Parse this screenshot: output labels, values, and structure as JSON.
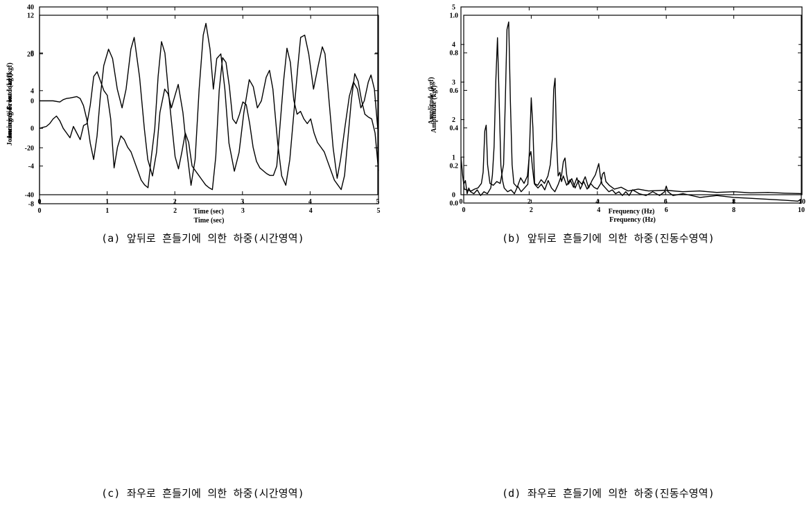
{
  "figures": [
    {
      "id": "a",
      "caption": "(a) 앞뒤로 흔들기에 의한 하중(시간영역)",
      "chart_data": {
        "type": "line",
        "xlabel": "Time (sec)",
        "ylabel": "Jouncing-Front load (kgf)",
        "xlim": [
          0,
          5
        ],
        "ylim": [
          -40,
          40
        ],
        "xticks": [
          "0",
          "1",
          "2",
          "3",
          "4",
          "5"
        ],
        "yticks": [
          "-40",
          "-20",
          "0",
          "20",
          "40"
        ],
        "grid": false,
        "series": [
          {
            "x": [
              0,
              0.1,
              0.2,
              0.3,
              0.35,
              0.4,
              0.45,
              0.5,
              0.55,
              0.6,
              0.65,
              0.7,
              0.75,
              0.8,
              0.85,
              0.9,
              0.95,
              1.02,
              1.08,
              1.15,
              1.22,
              1.28,
              1.35,
              1.4,
              1.48,
              1.55,
              1.6,
              1.67,
              1.73,
              1.78,
              1.85,
              1.9,
              1.95,
              2.0,
              2.05,
              2.12,
              2.18,
              2.24,
              2.3,
              2.36,
              2.42,
              2.46,
              2.52,
              2.57,
              2.62,
              2.68,
              2.74,
              2.8,
              2.88,
              2.95,
              3.02,
              3.1,
              3.16,
              3.22,
              3.28,
              3.35,
              3.4,
              3.45,
              3.52,
              3.58,
              3.64,
              3.7,
              3.76,
              3.82,
              3.86,
              3.92,
              3.98,
              4.05,
              4.12,
              4.18,
              4.22,
              4.28,
              4.34,
              4.4,
              4.45,
              4.52,
              4.58,
              4.64,
              4.7,
              4.75,
              4.8,
              4.86,
              4.9,
              4.95,
              5.0
            ],
            "y": [
              0,
              0,
              0,
              -0.5,
              0.5,
              1,
              1.2,
              1.5,
              1.8,
              1,
              -2,
              -8,
              -18,
              -25,
              -15,
              2,
              15,
              22,
              18,
              5,
              -3,
              5,
              22,
              27,
              10,
              -12,
              -25,
              -32,
              -22,
              -5,
              5,
              3,
              -3,
              2,
              7,
              -5,
              -22,
              -36,
              -25,
              5,
              28,
              33,
              22,
              5,
              18,
              20,
              5,
              -18,
              -30,
              -22,
              -5,
              9,
              6,
              -3,
              0,
              10,
              13,
              5,
              -18,
              -32,
              -36,
              -25,
              -5,
              15,
              27,
              28,
              20,
              5,
              15,
              23,
              20,
              0,
              -20,
              -33,
              -25,
              -10,
              2,
              8,
              5,
              -3,
              0,
              8,
              11,
              5,
              -12
            ]
          }
        ]
      }
    },
    {
      "id": "b",
      "caption": "(b) 앞뒤로 흔들기에 의한 하중(진동수영역)",
      "chart_data": {
        "type": "line",
        "xlabel": "Frequency (Hz)",
        "ylabel": "Amplitude (kgf)",
        "xlim": [
          0,
          10
        ],
        "ylim": [
          0,
          5
        ],
        "xticks": [
          "0",
          "2",
          "4",
          "6",
          "8",
          "10"
        ],
        "yticks": [
          "0",
          "1",
          "2",
          "3",
          "4",
          "5"
        ],
        "grid": false,
        "series": [
          {
            "x": [
              0,
              0.05,
              0.1,
              0.2,
              0.3,
              0.4,
              0.5,
              0.6,
              0.65,
              0.7,
              0.74,
              0.78,
              0.85,
              0.95,
              1.05,
              1.15,
              1.25,
              1.3,
              1.35,
              1.4,
              1.45,
              1.5,
              1.55,
              1.65,
              1.75,
              1.85,
              1.95,
              2.0,
              2.05,
              2.1,
              2.15,
              2.25,
              2.35,
              2.45,
              2.55,
              2.62,
              2.68,
              2.72,
              2.76,
              2.8,
              2.85,
              2.9,
              2.95,
              3.0,
              3.1,
              3.2,
              3.3,
              3.4,
              3.5,
              3.6,
              3.7,
              3.8,
              3.9,
              4.0,
              4.1,
              4.15,
              4.2,
              4.25,
              4.35,
              4.5,
              4.7,
              4.9,
              5.2,
              5.5,
              6.0,
              6.5,
              7.0,
              7.5,
              8.0,
              8.5,
              9.0,
              9.5,
              10.0
            ],
            "y": [
              1.0,
              0.5,
              0.15,
              0.12,
              0.1,
              0.15,
              0.18,
              0.3,
              0.6,
              1.7,
              1.85,
              0.8,
              0.3,
              0.25,
              0.35,
              0.3,
              0.8,
              2.5,
              4.4,
              4.6,
              2.5,
              0.8,
              0.3,
              0.2,
              0.45,
              0.3,
              0.5,
              1.0,
              1.15,
              0.7,
              0.3,
              0.25,
              0.4,
              0.3,
              0.5,
              0.8,
              1.5,
              2.8,
              3.1,
              1.5,
              0.5,
              0.6,
              0.35,
              0.5,
              0.25,
              0.4,
              0.2,
              0.45,
              0.15,
              0.35,
              0.15,
              0.3,
              0.2,
              0.15,
              0.3,
              0.55,
              0.6,
              0.35,
              0.25,
              0.15,
              0.2,
              0.1,
              0.15,
              0.1,
              0.12,
              0.08,
              0.1,
              0.06,
              0.08,
              0.05,
              0.06,
              0.04,
              0.03
            ]
          }
        ]
      }
    },
    {
      "id": "c",
      "caption": "(c) 좌우로 흔들기에 의한 하중(시간영역)",
      "chart_data": {
        "type": "line",
        "xlabel": "Time (sec)",
        "ylabel": "Jouncing-Side load (kgf)",
        "xlim": [
          0,
          5
        ],
        "ylim": [
          -8,
          12
        ],
        "xticks": [
          "0",
          "1",
          "2",
          "3",
          "4",
          "5"
        ],
        "yticks": [
          "-8",
          "-4",
          "0",
          "4",
          "8",
          "12"
        ],
        "grid": false,
        "series": [
          {
            "x": [
              0,
              0.05,
              0.1,
              0.15,
              0.2,
              0.25,
              0.3,
              0.35,
              0.4,
              0.45,
              0.5,
              0.55,
              0.6,
              0.65,
              0.7,
              0.75,
              0.8,
              0.85,
              0.9,
              0.95,
              1.0,
              1.05,
              1.1,
              1.15,
              1.2,
              1.25,
              1.3,
              1.35,
              1.4,
              1.45,
              1.5,
              1.55,
              1.6,
              1.65,
              1.7,
              1.75,
              1.8,
              1.85,
              1.9,
              1.95,
              2.0,
              2.05,
              2.1,
              2.15,
              2.2,
              2.25,
              2.3,
              2.35,
              2.4,
              2.45,
              2.5,
              2.55,
              2.6,
              2.65,
              2.7,
              2.75,
              2.8,
              2.85,
              2.9,
              2.95,
              3.0,
              3.05,
              3.1,
              3.15,
              3.2,
              3.25,
              3.3,
              3.35,
              3.4,
              3.45,
              3.5,
              3.55,
              3.6,
              3.65,
              3.7,
              3.75,
              3.8,
              3.85,
              3.9,
              3.95,
              4.0,
              4.05,
              4.1,
              4.15,
              4.2,
              4.25,
              4.3,
              4.35,
              4.4,
              4.45,
              4.5,
              4.55,
              4.6,
              4.65,
              4.7,
              4.75,
              4.8,
              4.85,
              4.9,
              4.95,
              5.0
            ],
            "y": [
              0,
              0.1,
              0.2,
              0.5,
              1.0,
              1.3,
              0.8,
              0,
              -0.5,
              -1.0,
              0.2,
              -0.5,
              -1.2,
              0.3,
              0.5,
              2.5,
              5.5,
              6.0,
              5.0,
              4.0,
              3.5,
              1.0,
              -4.2,
              -2.0,
              -0.8,
              -1.2,
              -2.0,
              -2.5,
              -3.5,
              -4.5,
              -5.5,
              -6.0,
              -6.3,
              -3.0,
              0,
              5.5,
              9.2,
              8.0,
              4.0,
              0.5,
              -3.0,
              -4.3,
              -2.5,
              -0.5,
              -1.5,
              -4.0,
              -4.5,
              -5.0,
              -5.5,
              -6.0,
              -6.3,
              -6.5,
              -3.0,
              4.0,
              7.5,
              7.0,
              4.5,
              1.0,
              0.5,
              1.5,
              2.8,
              2.5,
              0.5,
              -2.0,
              -3.5,
              -4.2,
              -4.5,
              -4.8,
              -5.0,
              -5.0,
              -4.0,
              0.5,
              5.0,
              8.5,
              7.0,
              3.0,
              1.5,
              1.8,
              1.0,
              0.5,
              1.0,
              -0.5,
              -1.5,
              -2.0,
              -2.5,
              -3.5,
              -4.5,
              -5.5,
              -6.0,
              -6.5,
              -5.0,
              -1.0,
              3.0,
              5.8,
              5.0,
              3.0,
              1.5,
              1.2,
              1.0,
              -0.5,
              -4.5
            ]
          }
        ]
      }
    },
    {
      "id": "d",
      "caption": "(d) 좌우로 흔들기에 의한 하중(진동수영역)",
      "chart_data": {
        "type": "line",
        "xlabel": "Frequency (Hz)",
        "ylabel": "Amplitude (kgf)",
        "xlim": [
          0,
          10
        ],
        "ylim": [
          0,
          1.0
        ],
        "xticks": [
          "0",
          "2",
          "4",
          "6",
          "8",
          "10"
        ],
        "yticks": [
          "0.0",
          "0.2",
          "0.4",
          "0.6",
          "0.8",
          "1.0"
        ],
        "grid": false,
        "series": [
          {
            "x": [
              0,
              0.05,
              0.1,
              0.15,
              0.2,
              0.3,
              0.4,
              0.5,
              0.6,
              0.7,
              0.8,
              0.85,
              0.9,
              0.95,
              1.0,
              1.05,
              1.1,
              1.15,
              1.2,
              1.3,
              1.4,
              1.5,
              1.6,
              1.7,
              1.8,
              1.9,
              1.95,
              2.0,
              2.05,
              2.1,
              2.2,
              2.3,
              2.4,
              2.5,
              2.6,
              2.7,
              2.8,
              2.9,
              2.95,
              3.0,
              3.05,
              3.1,
              3.2,
              3.3,
              3.4,
              3.5,
              3.6,
              3.7,
              3.8,
              3.9,
              3.95,
              4.0,
              4.05,
              4.1,
              4.2,
              4.3,
              4.4,
              4.5,
              4.6,
              4.7,
              4.8,
              4.9,
              5.0,
              5.2,
              5.4,
              5.6,
              5.8,
              5.95,
              6.0,
              6.05,
              6.2,
              6.5,
              7.0,
              7.5,
              8.0,
              8.5,
              9.0,
              9.5,
              9.9,
              10.0
            ],
            "y": [
              0.1,
              0.12,
              0.05,
              0.08,
              0.06,
              0.05,
              0.07,
              0.04,
              0.06,
              0.05,
              0.08,
              0.15,
              0.3,
              0.65,
              0.88,
              0.55,
              0.2,
              0.12,
              0.08,
              0.06,
              0.07,
              0.05,
              0.09,
              0.06,
              0.08,
              0.1,
              0.3,
              0.56,
              0.4,
              0.1,
              0.08,
              0.1,
              0.07,
              0.12,
              0.08,
              0.06,
              0.1,
              0.15,
              0.22,
              0.24,
              0.15,
              0.1,
              0.13,
              0.08,
              0.12,
              0.1,
              0.14,
              0.08,
              0.12,
              0.15,
              0.18,
              0.21,
              0.14,
              0.1,
              0.08,
              0.06,
              0.07,
              0.05,
              0.06,
              0.04,
              0.06,
              0.04,
              0.07,
              0.05,
              0.04,
              0.06,
              0.04,
              0.06,
              0.09,
              0.06,
              0.04,
              0.05,
              0.03,
              0.04,
              0.03,
              0.025,
              0.02,
              0.015,
              0.01,
              0.02
            ]
          }
        ]
      }
    }
  ]
}
